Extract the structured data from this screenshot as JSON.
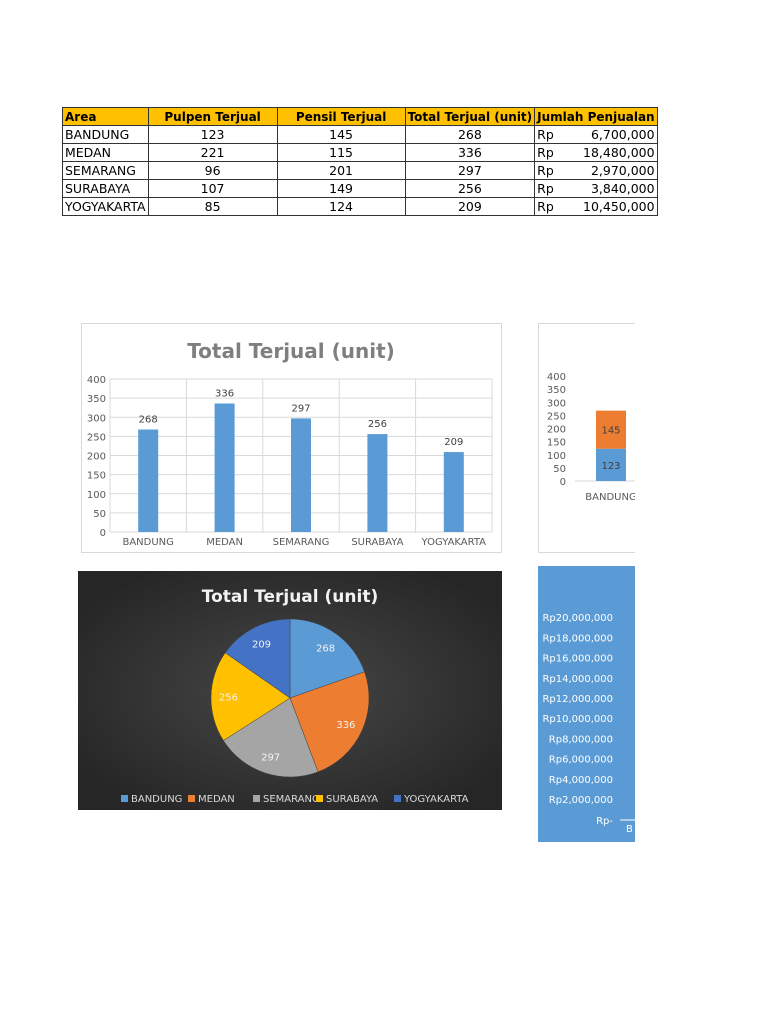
{
  "table": {
    "headers": [
      "Area",
      "Pulpen Terjual",
      "Pensil Terjual",
      "Total Terjual (unit)",
      "Jumlah Penjualan"
    ],
    "currency": "Rp",
    "rows": [
      [
        "BANDUNG",
        "123",
        "145",
        "268",
        "6,700,000"
      ],
      [
        "MEDAN",
        "221",
        "115",
        "336",
        "18,480,000"
      ],
      [
        "SEMARANG",
        "96",
        "201",
        "297",
        "2,970,000"
      ],
      [
        "SURABAYA",
        "107",
        "149",
        "256",
        "3,840,000"
      ],
      [
        "YOGYAKARTA",
        "85",
        "124",
        "209",
        "10,450,000"
      ]
    ]
  },
  "colors": {
    "blue": "#5b9bd5",
    "orange": "#ed7d31",
    "gray": "#a5a5a5",
    "yellow": "#ffc000",
    "darkblue": "#4472c4",
    "header": "#ffc000"
  },
  "chart_data": [
    {
      "type": "bar",
      "title": "Total Terjual (unit)",
      "categories": [
        "BANDUNG",
        "MEDAN",
        "SEMARANG",
        "SURABAYA",
        "YOGYAKARTA"
      ],
      "values": [
        268,
        336,
        297,
        256,
        209
      ],
      "yticks": [
        "0",
        "50",
        "100",
        "150",
        "200",
        "250",
        "300",
        "350",
        "400"
      ],
      "ylim": [
        0,
        400
      ],
      "grid": true,
      "data_labels": true
    },
    {
      "type": "bar",
      "stacked": true,
      "categories": [
        "BANDUNG"
      ],
      "series": [
        {
          "values": [
            123
          ],
          "color": "#5b9bd5"
        },
        {
          "values": [
            145
          ],
          "color": "#ed7d31"
        }
      ],
      "yticks": [
        "0",
        "50",
        "100",
        "150",
        "200",
        "250",
        "300",
        "350",
        "400"
      ],
      "ylim": [
        0,
        400
      ],
      "cropped": true
    },
    {
      "type": "pie",
      "title": "Total Terjual (unit)",
      "categories": [
        "BANDUNG",
        "MEDAN",
        "SEMARANG",
        "SURABAYA",
        "YOGYAKARTA"
      ],
      "values": [
        268,
        336,
        297,
        256,
        209
      ],
      "colors": [
        "#5b9bd5",
        "#ed7d31",
        "#a5a5a5",
        "#ffc000",
        "#4472c4"
      ],
      "legend": "bottom"
    },
    {
      "type": "bar",
      "cropped": true,
      "yticks": [
        "Rp-",
        "Rp2,000,000",
        "Rp4,000,000",
        "Rp6,000,000",
        "Rp8,000,000",
        "Rp10,000,000",
        "Rp12,000,000",
        "Rp14,000,000",
        "Rp16,000,000",
        "Rp18,000,000",
        "Rp20,000,000"
      ],
      "ylim": [
        0,
        20000000
      ],
      "category_fragment": "B"
    }
  ]
}
